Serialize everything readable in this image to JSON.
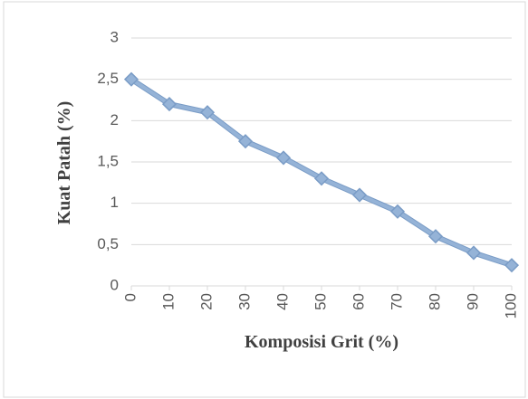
{
  "chart_data": {
    "type": "line",
    "x_label": "Komposisi Grit (%)",
    "y_label": "Kuat Patah (%)",
    "x": [
      0,
      10,
      20,
      30,
      40,
      50,
      60,
      70,
      80,
      90,
      100
    ],
    "series": [
      {
        "name": "Kuat Patah",
        "color": "#95b3d7",
        "values": [
          2.5,
          2.2,
          2.1,
          1.75,
          1.55,
          1.3,
          1.1,
          0.9,
          0.6,
          0.4,
          0.25
        ]
      }
    ],
    "xlim": [
      0,
      100
    ],
    "xticks": [
      0,
      10,
      20,
      30,
      40,
      50,
      60,
      70,
      80,
      90,
      100
    ],
    "ylim": [
      0,
      3
    ],
    "yticks": [
      0,
      {
        "value": 0.5,
        "label": "0,5"
      },
      1,
      {
        "value": 1.5,
        "label": "1,5"
      },
      2,
      {
        "value": 2.5,
        "label": "2,5"
      },
      3
    ],
    "grid": true
  }
}
